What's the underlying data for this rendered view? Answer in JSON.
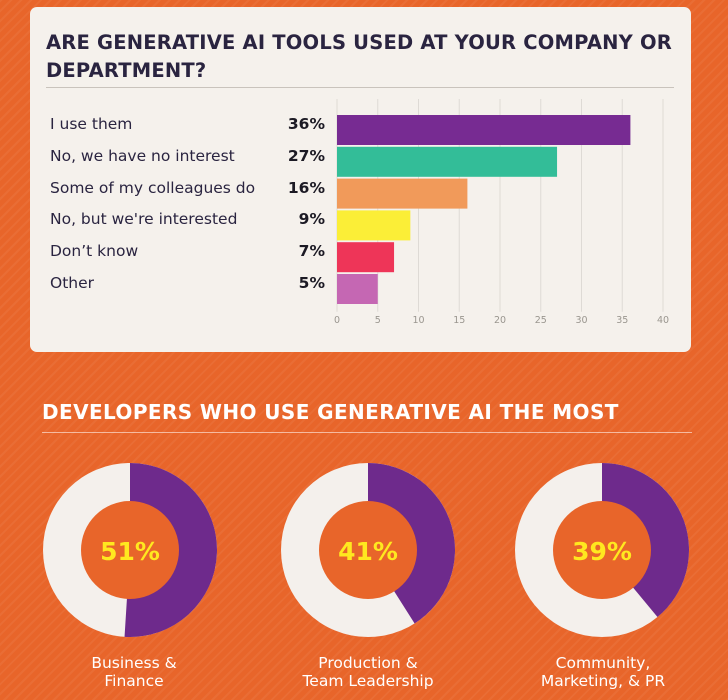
{
  "colors": {
    "background": "#e8652a",
    "panel": "#f5f1ec",
    "title_text": "#2a2440",
    "donut_fill": "#6e2a8c",
    "donut_track": "#f4f0ec",
    "donut_value_text": "#ffe81f"
  },
  "chart_data": [
    {
      "type": "bar",
      "orientation": "horizontal",
      "title": "ARE GENERATIVE AI TOOLS USED AT YOUR COMPANY OR DEPARTMENT?",
      "categories": [
        "I use them",
        "No, we have no interest",
        "Some of my colleagues do",
        "No, but we're interested",
        "Don’t know",
        "Other"
      ],
      "values": [
        36,
        27,
        16,
        9,
        7,
        5
      ],
      "value_labels": [
        "36%",
        "27%",
        "16%",
        "9%",
        "7%",
        "5%"
      ],
      "bar_colors": [
        "#772b92",
        "#33bd98",
        "#f19a5a",
        "#fbee37",
        "#ee3558",
        "#c567b3"
      ],
      "xlim": [
        0,
        40
      ],
      "xticks": [
        0,
        5,
        10,
        15,
        20,
        25,
        30,
        35,
        40
      ],
      "grid": "vertical"
    },
    {
      "type": "pie",
      "style": "donut",
      "title": "DEVELOPERS WHO USE GENERATIVE AI THE MOST",
      "items": [
        {
          "label": "Business & Finance",
          "value": 51,
          "value_label": "51%"
        },
        {
          "label": "Production & Team Leadership",
          "value": 41,
          "value_label": "41%"
        },
        {
          "label": "Community, Marketing, & PR",
          "value": 39,
          "value_label": "39%"
        }
      ]
    }
  ],
  "donut_captions": [
    [
      "Business &",
      "Finance"
    ],
    [
      "Production &",
      "Team Leadership"
    ],
    [
      "Community,",
      "Marketing, & PR"
    ]
  ]
}
